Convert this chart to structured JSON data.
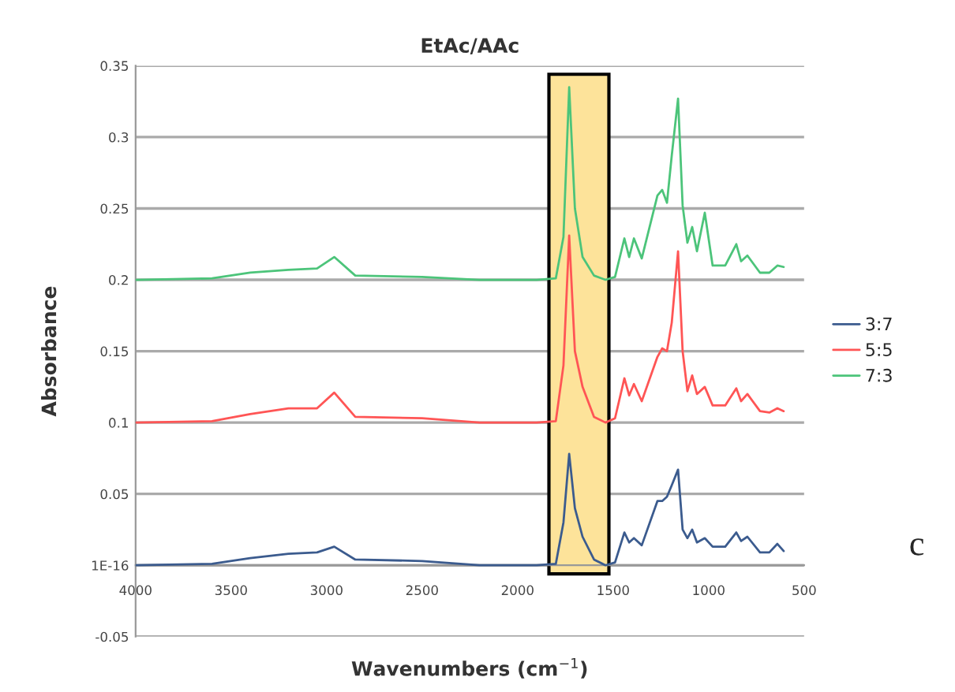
{
  "chart_data": {
    "type": "line",
    "title": "EtAc/AAc",
    "xlabel": "Wavenumbers (cm$^{−1}$)",
    "ylabel": "Absorbance",
    "x": [
      4000,
      3600,
      3400,
      3200,
      3050,
      2960,
      2850,
      2500,
      2200,
      1900,
      1800,
      1760,
      1730,
      1700,
      1660,
      1600,
      1540,
      1490,
      1441,
      1416,
      1391,
      1350,
      1268,
      1243,
      1218,
      1193,
      1160,
      1136,
      1111,
      1086,
      1061,
      1020,
      979,
      913,
      855,
      830,
      797,
      731,
      682,
      640,
      607
    ],
    "series": [
      {
        "name": "3:7",
        "color": "#3b5b8e",
        "values": [
          0,
          0.001,
          0.005,
          0.008,
          0.009,
          0.013,
          0.004,
          0.003,
          0,
          0,
          0.001,
          0.03,
          0.078,
          0.04,
          0.02,
          0.004,
          0,
          0.002,
          0.023,
          0.016,
          0.019,
          0.014,
          0.045,
          0.045,
          0.048,
          0.056,
          0.067,
          0.025,
          0.019,
          0.025,
          0.016,
          0.019,
          0.013,
          0.013,
          0.023,
          0.017,
          0.02,
          0.009,
          0.009,
          0.015,
          0.01
        ]
      },
      {
        "name": "5:5",
        "color": "#ff5555",
        "values": [
          0.1,
          0.101,
          0.106,
          0.11,
          0.11,
          0.121,
          0.104,
          0.103,
          0.1,
          0.1,
          0.101,
          0.14,
          0.231,
          0.15,
          0.125,
          0.104,
          0.1,
          0.103,
          0.131,
          0.119,
          0.127,
          0.115,
          0.146,
          0.152,
          0.15,
          0.17,
          0.22,
          0.15,
          0.122,
          0.133,
          0.12,
          0.125,
          0.112,
          0.112,
          0.124,
          0.115,
          0.12,
          0.108,
          0.107,
          0.11,
          0.108
        ]
      },
      {
        "name": "7:3",
        "color": "#4cc47a",
        "values": [
          0.2,
          0.201,
          0.205,
          0.207,
          0.208,
          0.216,
          0.203,
          0.202,
          0.2,
          0.2,
          0.201,
          0.23,
          0.335,
          0.25,
          0.216,
          0.203,
          0.2,
          0.202,
          0.229,
          0.216,
          0.229,
          0.215,
          0.259,
          0.263,
          0.254,
          0.287,
          0.327,
          0.252,
          0.226,
          0.237,
          0.22,
          0.247,
          0.21,
          0.21,
          0.225,
          0.213,
          0.217,
          0.205,
          0.205,
          0.21,
          0.209
        ]
      }
    ],
    "xlim": [
      4000,
      500
    ],
    "xticks": [
      4000,
      3500,
      3000,
      2500,
      2000,
      1500,
      1000,
      500
    ],
    "ylim": [
      -0.05,
      0.35
    ],
    "yticks": [
      -0.05,
      {
        "value": 0,
        "label": "1E-16"
      },
      0.05,
      0.1,
      0.15,
      0.2,
      0.25,
      0.3,
      0.35
    ],
    "grid": "y",
    "legend": "right",
    "marker": "none",
    "line_style": "solid",
    "bands": [
      {
        "axis": "x",
        "from": 1836,
        "to": 1522,
        "color": "#fde39a"
      }
    ],
    "annotations": [
      "c"
    ]
  }
}
